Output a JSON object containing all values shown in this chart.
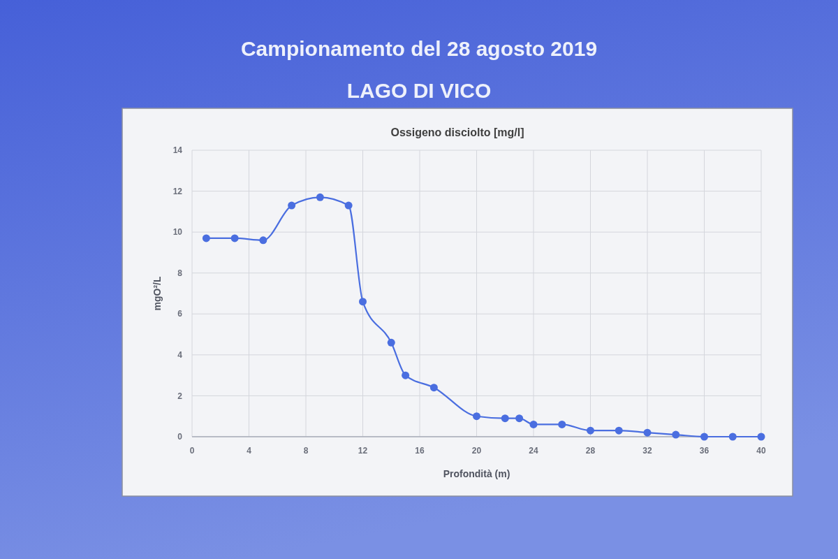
{
  "chart_data": {
    "type": "line",
    "title": "Campionamento del 28 agosto 2019",
    "subtitle": "LAGO DI VICO",
    "annotations": [
      "Ossigeno disciolto [mg/l]"
    ],
    "xlabel": "Profondità (m)",
    "ylabel": "mgO²/L",
    "x": [
      1,
      3,
      5,
      7,
      9,
      11,
      12,
      14,
      15,
      17,
      20,
      22,
      23,
      24,
      26,
      28,
      30,
      32,
      34,
      36,
      38,
      40
    ],
    "series": [
      {
        "color": "#4a6ee0",
        "values": [
          9.7,
          9.7,
          9.6,
          11.3,
          11.7,
          11.3,
          6.6,
          4.6,
          3.0,
          2.4,
          1.0,
          0.9,
          0.9,
          0.6,
          0.6,
          0.3,
          0.3,
          0.2,
          0.1,
          0,
          0,
          0
        ]
      }
    ],
    "xlim": [
      0,
      40
    ],
    "xticks": [
      0,
      4,
      8,
      12,
      16,
      20,
      24,
      28,
      32,
      36,
      40
    ],
    "ylim": [
      0,
      14
    ],
    "yticks": [
      0,
      2,
      4,
      6,
      8,
      10,
      12,
      14
    ],
    "grid": true,
    "marker": "circle",
    "line_style": "solid"
  }
}
